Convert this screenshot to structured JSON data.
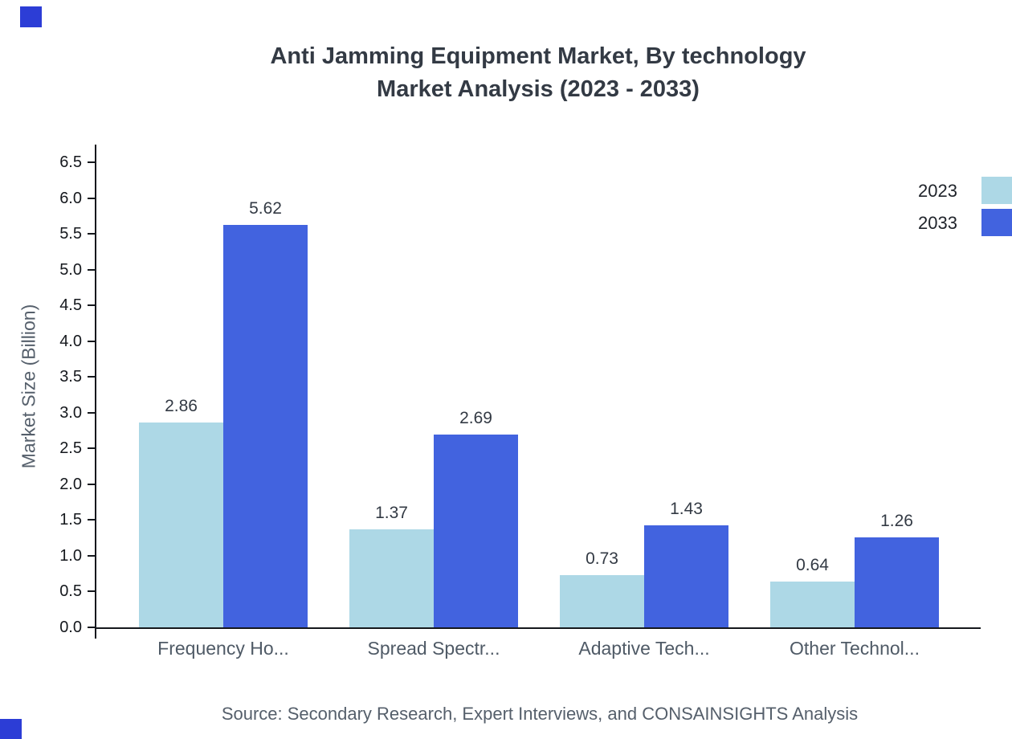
{
  "title": {
    "line1": "Anti Jamming Equipment Market, By technology",
    "line2": "Market Analysis (2023 - 2033)"
  },
  "chart_data": {
    "type": "bar",
    "title": "Anti Jamming Equipment Market, By technology Market Analysis (2023 - 2033)",
    "categories": [
      "Frequency Ho...",
      "Spread Spectr...",
      "Adaptive Tech...",
      "Other Technol..."
    ],
    "series": [
      {
        "name": "2023",
        "color": "#ADD8E6",
        "values": [
          2.86,
          1.37,
          0.73,
          0.64
        ]
      },
      {
        "name": "2033",
        "color": "#4263DF",
        "values": [
          5.62,
          2.69,
          1.43,
          1.26
        ]
      }
    ],
    "xlabel": "",
    "ylabel": "Market Size (Billion)",
    "ylim": [
      0,
      6.5
    ],
    "ytick_step": 0.5,
    "grid": false,
    "legend_position": "top-right",
    "value_labels": true
  },
  "footer": {
    "source": "Source: Secondary Research, Expert Interviews, and CONSAINSIGHTS Analysis"
  },
  "decor": {
    "accent_color": "#2C3DD6"
  }
}
